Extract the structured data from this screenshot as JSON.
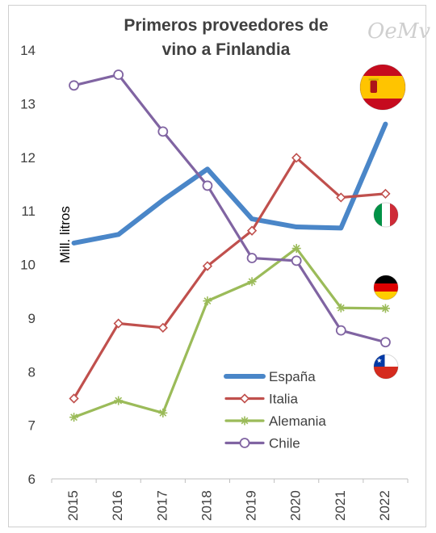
{
  "watermark": "OeMv",
  "flags": {
    "spain": {
      "icon": "spain-flag-icon",
      "colors": [
        "#c60b1e",
        "#ffc400",
        "#c60b1e"
      ]
    },
    "italy": {
      "icon": "italy-flag-icon",
      "colors": [
        "#009246",
        "#ffffff",
        "#ce2b37"
      ]
    },
    "germany": {
      "icon": "germany-flag-icon",
      "colors": [
        "#000000",
        "#dd0000",
        "#ffce00"
      ]
    },
    "chile": {
      "icon": "chile-flag-icon",
      "colors": [
        "#0039a6",
        "#ffffff",
        "#d52b1e"
      ]
    }
  },
  "chart_data": {
    "type": "line",
    "title_line1": "Primeros proveedores de",
    "title_line2": "vino a Finlandia",
    "ylabel": "Mill. litros",
    "ylim": [
      6,
      14
    ],
    "yticks": [
      "6",
      "7",
      "8",
      "9",
      "10",
      "11",
      "12",
      "13",
      "14"
    ],
    "categories": [
      "2015",
      "2016",
      "2017",
      "2018",
      "2019",
      "2020",
      "2021",
      "2022"
    ],
    "legend_position": "bottom-right (inside plot)",
    "grid": false,
    "series": [
      {
        "name": "España",
        "color": "#4a86c8",
        "marker": "none",
        "values": [
          10.4,
          10.56,
          11.2,
          11.78,
          10.85,
          10.7,
          10.68,
          12.62
        ]
      },
      {
        "name": "Italia",
        "color": "#c0504d",
        "marker": "diamond",
        "values": [
          7.5,
          8.9,
          8.82,
          9.97,
          10.63,
          11.99,
          11.25,
          11.32
        ]
      },
      {
        "name": "Alemania",
        "color": "#9bbb59",
        "marker": "star",
        "values": [
          7.15,
          7.46,
          7.23,
          9.32,
          9.68,
          10.3,
          9.19,
          9.18
        ]
      },
      {
        "name": "Chile",
        "color": "#8064a2",
        "marker": "circle",
        "values": [
          13.34,
          13.54,
          12.48,
          11.47,
          10.12,
          10.07,
          8.77,
          8.55
        ]
      }
    ]
  }
}
